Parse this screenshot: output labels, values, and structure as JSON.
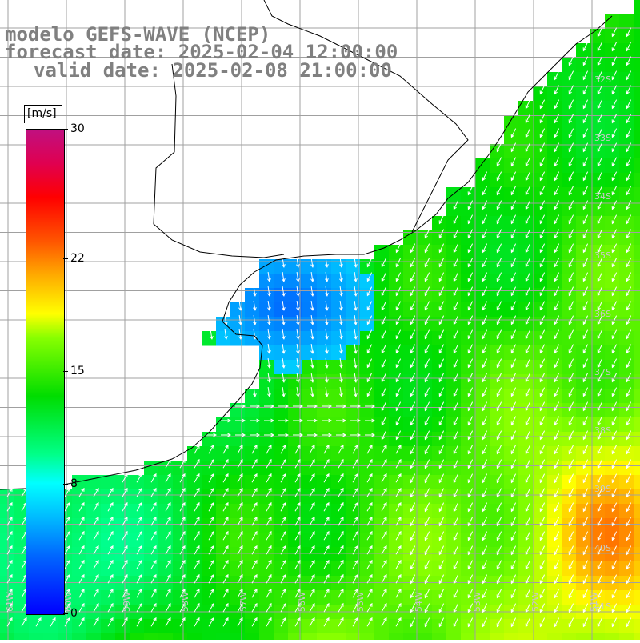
{
  "title": {
    "line1": "modelo GEFS-WAVE (NCEP)",
    "line2": "forecast date: 2025-02-04 12:00:00",
    "line3": "valid date: 2025-02-08 21:00:00"
  },
  "colorbar": {
    "unit": "[m/s]",
    "min": 0,
    "max": 30,
    "ticks": [
      {
        "label": "30",
        "value": 30
      },
      {
        "label": "22",
        "value": 22
      },
      {
        "label": "15",
        "value": 15
      },
      {
        "label": "8",
        "value": 8
      },
      {
        "label": "0",
        "value": 0
      }
    ],
    "colors": {
      "low": "#0000ff",
      "mid": "#00ff00",
      "high": "#c01080"
    }
  },
  "lat_labels": [
    "32S",
    "33S",
    "34S",
    "35S",
    "36S",
    "37S",
    "38S",
    "39S",
    "40S",
    "41S"
  ],
  "lon_labels": [
    "61W",
    "60W",
    "59W",
    "58W",
    "57W",
    "56W",
    "55W",
    "54W",
    "53W",
    "52W",
    "51W"
  ],
  "map": {
    "lon_range": [
      -61.2,
      -50.5
    ],
    "lat_range": [
      -41.3,
      -31.5
    ],
    "land_color": "#ffffff",
    "coast_color": "#000000",
    "grid_color": "#a0a0a0",
    "arrow_color": "#ffffff"
  }
}
